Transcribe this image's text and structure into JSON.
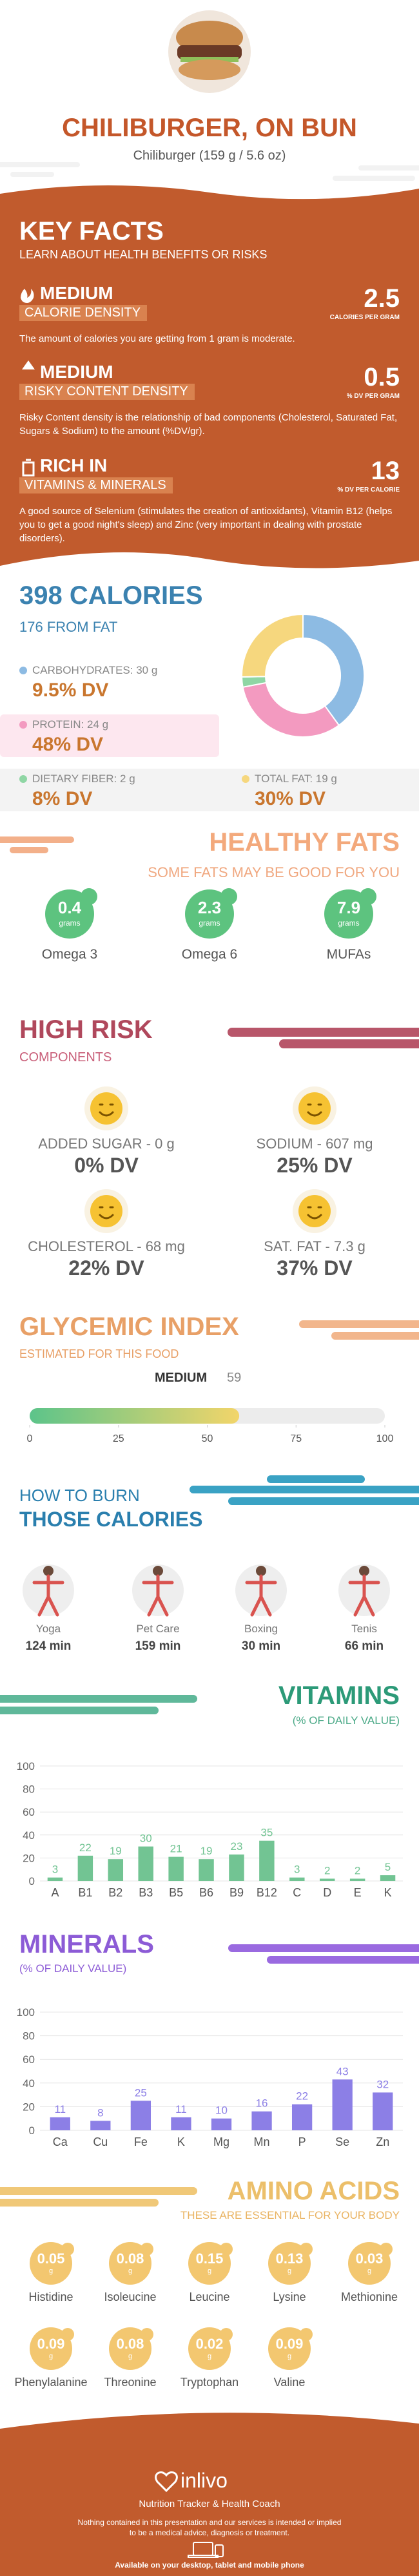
{
  "header": {
    "title": "CHILIBURGER, ON BUN",
    "subtitle": "Chiliburger (159 g / 5.6 oz)"
  },
  "key_facts": {
    "title": "KEY FACTS",
    "subtitle": "LEARN ABOUT HEALTH BENEFITS OR RISKS",
    "items": [
      {
        "level": "MEDIUM",
        "name": "CALORIE DENSITY",
        "value": 2.5,
        "unit": "CALORIES PER GRAM",
        "description": "The amount of calories you are getting from 1 gram is moderate."
      },
      {
        "level": "MEDIUM",
        "name": "RISKY CONTENT DENSITY",
        "value": 0.5,
        "unit": "% DV PER GRAM",
        "description": "Risky Content density is the relationship of bad components (Cholesterol, Saturated Fat, Sugars & Sodium) to the amount (%DV/gr)."
      },
      {
        "level": "RICH IN",
        "name": "VITAMINS & MINERALS",
        "value": 13,
        "unit": "% DV PER CALORIE",
        "description": "A good source of Selenium (stimulates the creation of antioxidants), Vitamin B12 (helps you to get a good night's sleep) and Zinc (very important in dealing with prostate disorders)."
      }
    ]
  },
  "calories": {
    "title": "398 CALORIES",
    "subtitle": "176 FROM FAT",
    "chart_data": {
      "type": "donut",
      "series": [
        {
          "name": "CARBOHYDRATES: 30 g",
          "value": 30,
          "dv": "9.5% DV",
          "color": "#8dbbe3"
        },
        {
          "name": "PROTEIN: 24 g",
          "value": 24,
          "dv": "48% DV",
          "color": "#f39ac0"
        },
        {
          "name": "DIETARY FIBER: 2 g",
          "value": 2,
          "dv": "8% DV",
          "color": "#8fd6a4"
        },
        {
          "name": "TOTAL FAT: 19 g",
          "value": 19,
          "dv": "30% DV",
          "color": "#f6d77e"
        }
      ]
    }
  },
  "healthy_fats": {
    "title": "HEALTHY FATS",
    "subtitle": "SOME FATS MAY BE GOOD FOR YOU",
    "unit": "grams",
    "items": [
      {
        "name": "Omega 3",
        "value": 0.4
      },
      {
        "name": "Omega 6",
        "value": 2.3
      },
      {
        "name": "MUFAs",
        "value": 7.9
      }
    ]
  },
  "high_risk": {
    "title": "HIGH RISK",
    "subtitle": "COMPONENTS",
    "items": [
      {
        "name": "ADDED SUGAR - 0 g",
        "dv": "0% DV"
      },
      {
        "name": "SODIUM - 607 mg",
        "dv": "25% DV"
      },
      {
        "name": "CHOLESTEROL - 68 mg",
        "dv": "22% DV"
      },
      {
        "name": "SAT. FAT - 7.3 g",
        "dv": "37% DV"
      }
    ]
  },
  "glycemic_index": {
    "title": "GLYCEMIC INDEX",
    "subtitle": "ESTIMATED FOR THIS FOOD",
    "level": "MEDIUM",
    "chart_data": {
      "type": "gauge",
      "value": 59,
      "xlim": [
        0,
        100
      ],
      "xticks": [
        0,
        25,
        50,
        75,
        100
      ]
    }
  },
  "burn": {
    "title_line1": "HOW TO BURN",
    "title_line2": "THOSE CALORIES",
    "items": [
      {
        "name": "Yoga",
        "time": "124 min"
      },
      {
        "name": "Pet Care",
        "time": "159 min"
      },
      {
        "name": "Boxing",
        "time": "30 min"
      },
      {
        "name": "Tenis",
        "time": "66 min"
      }
    ]
  },
  "vitamins": {
    "title": "VITAMINS",
    "subtitle": "(% OF DAILY VALUE)",
    "chart_data": {
      "type": "bar",
      "categories": [
        "A",
        "B1",
        "B2",
        "B3",
        "B5",
        "B6",
        "B9",
        "B12",
        "C",
        "D",
        "E",
        "K"
      ],
      "values": [
        3,
        22,
        19,
        30,
        21,
        19,
        23,
        35,
        3,
        2,
        2,
        5
      ],
      "color": "#72c493",
      "ylim": [
        0,
        100
      ],
      "yticks": [
        0,
        20,
        40,
        60,
        80,
        100
      ],
      "grid": true
    }
  },
  "minerals": {
    "title": "MINERALS",
    "subtitle": "(% OF DAILY VALUE)",
    "chart_data": {
      "type": "bar",
      "categories": [
        "Ca",
        "Cu",
        "Fe",
        "K",
        "Mg",
        "Mn",
        "P",
        "Se",
        "Zn"
      ],
      "values": [
        11,
        8,
        25,
        11,
        10,
        16,
        22,
        43,
        32
      ],
      "color": "#8c7fe6",
      "ylim": [
        0,
        100
      ],
      "yticks": [
        0,
        20,
        40,
        60,
        80,
        100
      ],
      "grid": true
    }
  },
  "amino_acids": {
    "title": "AMINO ACIDS",
    "subtitle": "THESE ARE ESSENTIAL FOR YOUR BODY",
    "unit": "g",
    "items": [
      {
        "name": "Histidine",
        "value": 0.05
      },
      {
        "name": "Isoleucine",
        "value": 0.08
      },
      {
        "name": "Leucine",
        "value": 0.15
      },
      {
        "name": "Lysine",
        "value": 0.13
      },
      {
        "name": "Methionine",
        "value": 0.03
      },
      {
        "name": "Phenylalanine",
        "value": 0.09
      },
      {
        "name": "Threonine",
        "value": 0.08
      },
      {
        "name": "Tryptophan",
        "value": 0.02
      },
      {
        "name": "Valine",
        "value": 0.09
      }
    ]
  },
  "footer": {
    "brand": "inlivo",
    "tagline": "Nutrition Tracker & Health Coach",
    "disclaimer_1": "Nothing contained in this presentation and our services is intended or implied",
    "disclaimer_2": "to be a medical advice, diagnosis or treatment.",
    "availability": "Available on your desktop, tablet and mobile phone"
  }
}
